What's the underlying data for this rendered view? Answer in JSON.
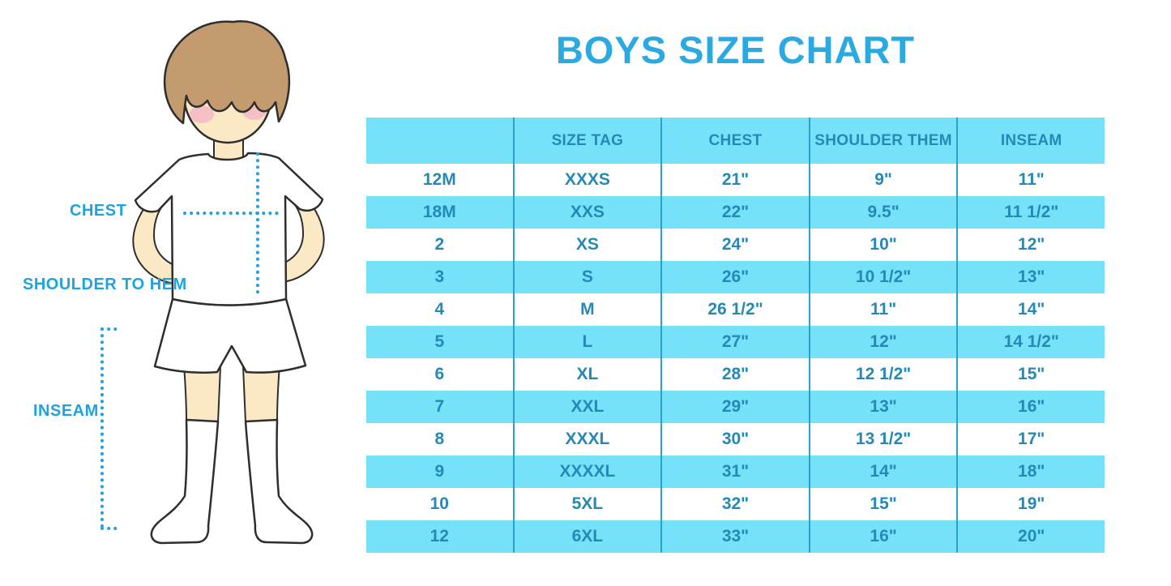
{
  "title": "BOYS SIZE CHART",
  "figure": {
    "name": "boy with measurement guides",
    "labels": {
      "chest": "CHEST",
      "shoulder_to_hem": "SHOULDER TO HEM",
      "inseam": "INSEAM"
    }
  },
  "chart_data": {
    "type": "table",
    "title": "BOYS SIZE CHART",
    "columns": [
      "",
      "SIZE TAG",
      "CHEST",
      "SHOULDER THEM",
      "INSEAM"
    ],
    "rows": [
      [
        "12M",
        "XXXS",
        "21\"",
        "9\"",
        "11\""
      ],
      [
        "18M",
        "XXS",
        "22\"",
        "9.5\"",
        "11 1/2\""
      ],
      [
        "2",
        "XS",
        "24\"",
        "10\"",
        "12\""
      ],
      [
        "3",
        "S",
        "26\"",
        "10 1/2\"",
        "13\""
      ],
      [
        "4",
        "M",
        "26 1/2\"",
        "11\"",
        "14\""
      ],
      [
        "5",
        "L",
        "27\"",
        "12\"",
        "14 1/2\""
      ],
      [
        "6",
        "XL",
        "28\"",
        "12 1/2\"",
        "15\""
      ],
      [
        "7",
        "XXL",
        "29\"",
        "13\"",
        "16\""
      ],
      [
        "8",
        "XXXL",
        "30\"",
        "13 1/2\"",
        "17\""
      ],
      [
        "9",
        "XXXXL",
        "31\"",
        "14\"",
        "18\""
      ],
      [
        "10",
        "5XL",
        "32\"",
        "15\"",
        "19\""
      ],
      [
        "12",
        "6XL",
        "33\"",
        "16\"",
        "20\""
      ]
    ],
    "layout": {
      "header_background": "cyan",
      "row_striping": "white / cyan alternating",
      "grid": "vertical dividers only"
    }
  },
  "colors": {
    "title_blue": "#2BAAE2",
    "label_blue": "#1FA3DE",
    "dotted_guide": "#1FA3DE",
    "table_fill_cyan": "#76E2FA",
    "table_text_teal": "#2489B6",
    "table_divider": "#2BA2CC",
    "hair_brown": "#C39B6E",
    "skin": "#FBE8C5",
    "blush_pink": "#F3B3C2",
    "outline": "#2E2E2E"
  }
}
